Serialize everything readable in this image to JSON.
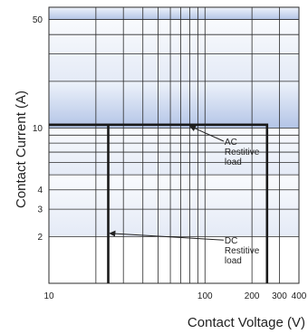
{
  "chart_data": {
    "type": "line",
    "title": "",
    "xlabel": "Contact Voltage (V)",
    "ylabel": "Contact Current (A)",
    "x_scale": "log",
    "y_scale": "log",
    "xlim": [
      10,
      400
    ],
    "ylim": [
      1,
      60
    ],
    "x_ticks": [
      10,
      100,
      200,
      300,
      400
    ],
    "x_tick_labels": [
      "10",
      "100",
      "200",
      "300",
      "400"
    ],
    "y_ticks": [
      2,
      3,
      4,
      10,
      50
    ],
    "y_tick_labels": [
      "2",
      "3",
      "4",
      "10",
      "50"
    ],
    "grid": true,
    "series": [
      {
        "name": "AC Restitive load",
        "color": "#1a1a1a",
        "x": [
          10,
          250,
          250
        ],
        "y": [
          10.5,
          10.5,
          1
        ]
      },
      {
        "name": "DC Restitive load",
        "color": "#1a1a1a",
        "x": [
          24,
          24,
          10
        ],
        "y": [
          1,
          10.5,
          10.5
        ]
      }
    ],
    "annotations": [
      {
        "lines": [
          "AC",
          "Restitive",
          "load"
        ],
        "arrow_to": [
          80,
          10.3
        ],
        "text_at": [
          130,
          7.8
        ]
      },
      {
        "lines": [
          "DC",
          "Restitive",
          "load"
        ],
        "arrow_to": [
          24.5,
          2.1
        ],
        "text_at": [
          130,
          1.8
        ]
      }
    ],
    "colors": {
      "band_dark": "#b3c4e6",
      "band_light": "#eef3fb",
      "grid": "#2b2b2b"
    }
  }
}
